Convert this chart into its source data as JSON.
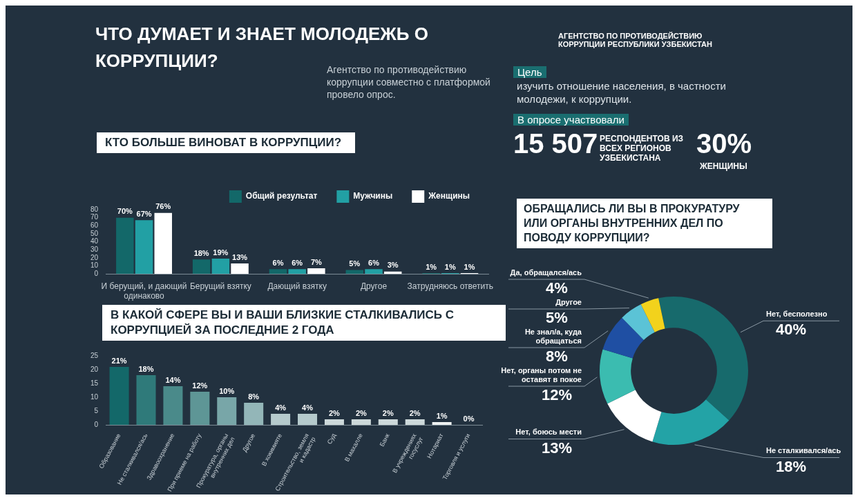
{
  "chart_data": [
    {
      "type": "other",
      "title": "ЧТО ДУМАЕТ И ЗНАЕТ МОЛОДЕЖЬ О КОРРУПЦИИ?",
      "annotations": [
        "АГЕНТСТВО ПО ПРОТИВОДЕЙСТВИЮ КОРРУПЦИИ РЕСПУБЛИКИ УЗБЕКИСТАН",
        "Агентство по противодействию коррупции совместно с платформой провело опрос.",
        "Цель",
        "изучить отношение населения, в частности молодежи, к коррупции.",
        "В опросе участвовали",
        "15 507",
        "РЕСПОНДЕНТОВ ИЗ ВСЕХ РЕГИОНОВ УЗБЕКИСТАНА",
        "30%",
        "ЖЕНЩИНЫ"
      ]
    },
    {
      "type": "bar",
      "title": "КТО БОЛЬШЕ ВИНОВАТ В КОРРУПЦИИ?",
      "categories": [
        "И берущий, и дающий одинаково",
        "Берущий взятку",
        "Дающий взятку",
        "Другое",
        "Затрудняюсь ответить"
      ],
      "ylim": [
        0,
        80
      ],
      "yticks": [
        0,
        10,
        20,
        30,
        40,
        50,
        60,
        70,
        80
      ],
      "grid": false,
      "legend": "top right",
      "series": [
        {
          "name": "Общий результат",
          "color": "#136869",
          "values": [
            70,
            18,
            6,
            5,
            1
          ],
          "value_labels": [
            "70%",
            "18%",
            "6%",
            "5%",
            "1%"
          ]
        },
        {
          "name": "Мужчины",
          "color": "#22a0a4",
          "values": [
            67,
            19,
            6,
            6,
            1
          ],
          "value_labels": [
            "67%",
            "19%",
            "6%",
            "6%",
            "1%"
          ]
        },
        {
          "name": "Женщины",
          "color": "#ffffff",
          "values": [
            76,
            13,
            7,
            3,
            1
          ],
          "value_labels": [
            "76%",
            "13%",
            "7%",
            "3%",
            "1%"
          ]
        }
      ]
    },
    {
      "type": "bar",
      "title": "В КАКОЙ СФЕРЕ ВЫ И ВАШИ БЛИЗКИЕ СТАЛКИВАЛИСЬ С КОРРУПЦИЕЙ ЗА ПОСЛЕДНИЕ 2 ГОДА",
      "categories": [
        "Образование",
        "Не сталкивался/ась",
        "Здравоохранение",
        "При приеме на работу",
        "Прокуратура, органы внутренних дел",
        "Другое",
        "В хокимияте",
        "Строительство, земля и кадастр",
        "Суд",
        "В махалле",
        "Банк",
        "В учреждениях госуслуг",
        "Нотариат",
        "Торговля и услуги"
      ],
      "ylim": [
        0,
        25
      ],
      "yticks": [
        0,
        5,
        10,
        15,
        20,
        25
      ],
      "grid": false,
      "values": [
        21,
        18,
        14,
        12,
        10,
        8,
        4,
        4,
        2,
        2,
        2,
        2,
        1,
        0
      ],
      "colors": [
        "#136869",
        "#2f7a7a",
        "#4a8a8a",
        "#5e9696",
        "#78a6a8",
        "#93b6b8",
        "#b5cacc",
        "#b5cacc",
        "#cdd9da",
        "#cdd9da",
        "#cdd9da",
        "#cdd9da",
        "#eef2f2",
        "#ffffff"
      ],
      "value_labels": [
        "21%",
        "18%",
        "14%",
        "12%",
        "10%",
        "8%",
        "4%",
        "4%",
        "2%",
        "2%",
        "2%",
        "2%",
        "1%",
        "0%"
      ]
    },
    {
      "type": "donut",
      "title": "ОБРАЩАЛИСЬ ЛИ ВЫ В ПРОКУРАТУРУ ИЛИ ОРГАНЫ ВНУТРЕННИХ ДЕЛ ПО ПОВОДУ КОРРУПЦИИ?",
      "categories": [
        "Нет, бесполезно",
        "Не сталкивался/ась",
        "Нет, боюсь мести",
        "Нет, органы потом не оставят в покое",
        "Не знал/а, куда обращаться",
        "Другое",
        "Да, обращался/ась"
      ],
      "values": [
        40,
        18,
        13,
        12,
        8,
        5,
        4
      ],
      "colors": [
        "#176a6c",
        "#23a3a6",
        "#ffffff",
        "#3bbcb0",
        "#1f4fa3",
        "#5bc3d6",
        "#f2d21c"
      ],
      "value_labels": [
        "40%",
        "18%",
        "13%",
        "12%",
        "8%",
        "5%",
        "4%"
      ]
    }
  ]
}
